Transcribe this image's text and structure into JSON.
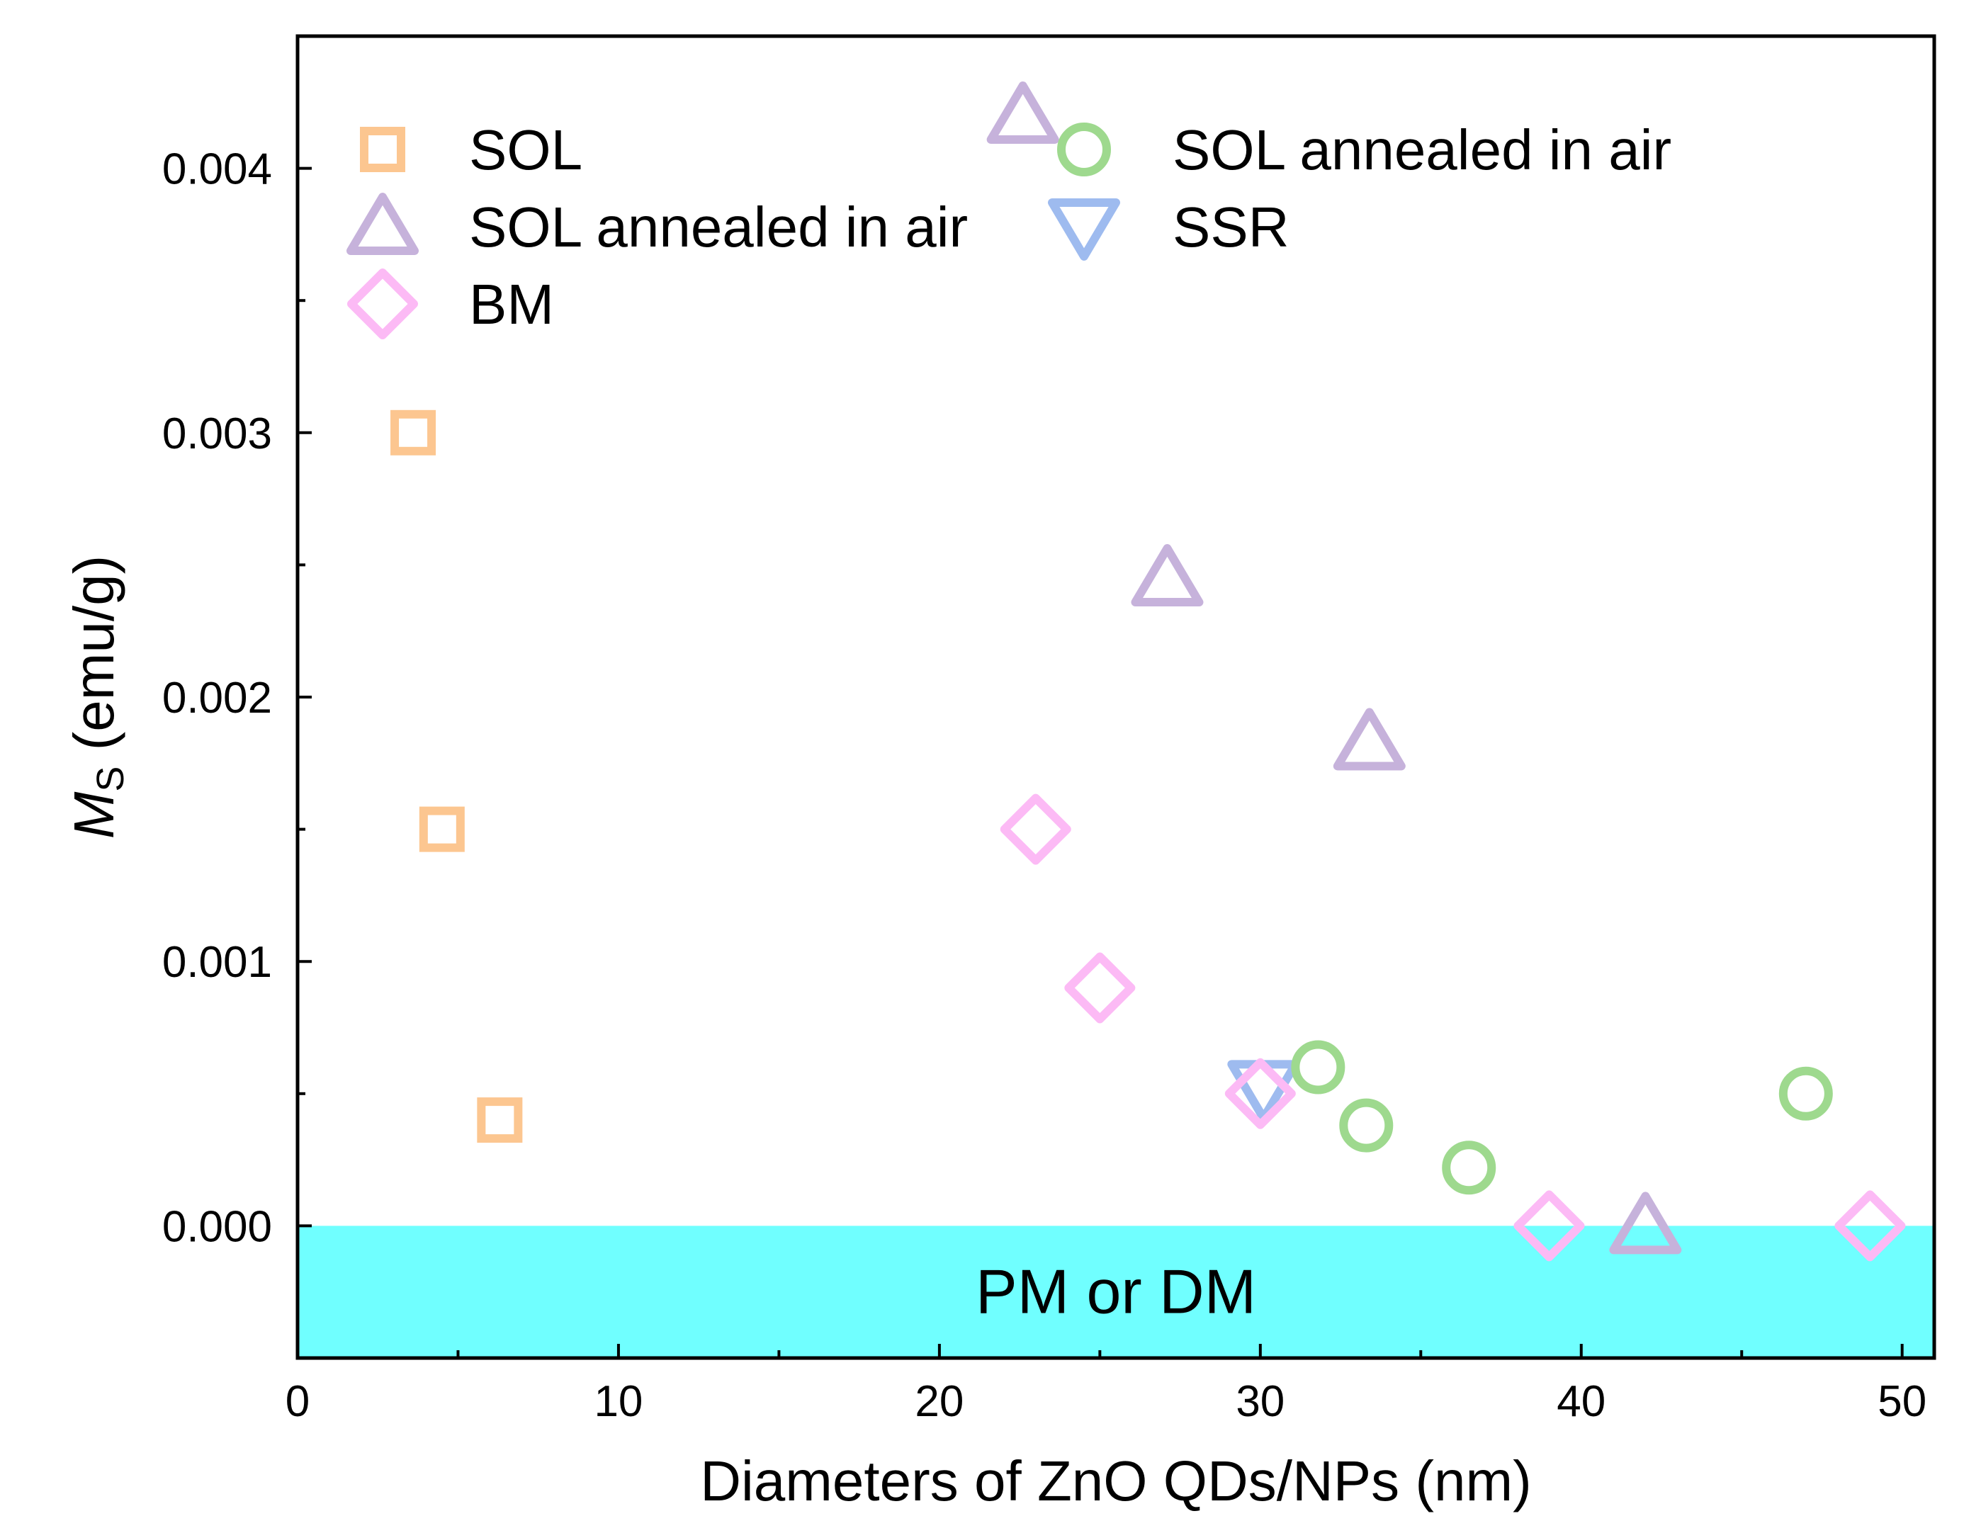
{
  "chart_data": {
    "type": "scatter",
    "title": "",
    "xlabel": "Diameters of ZnO QDs/NPs (nm)",
    "ylabel_main": "M",
    "ylabel_sub": "S",
    "ylabel_unit": " (emu/g)",
    "xlim": [
      0,
      51
    ],
    "ylim": [
      -0.0005,
      0.0045
    ],
    "x_ticks": [
      0,
      10,
      20,
      30,
      40,
      50
    ],
    "x_tick_labels": [
      "0",
      "10",
      "20",
      "30",
      "40",
      "50"
    ],
    "x_minor_ticks": [
      5,
      15,
      25,
      35,
      45
    ],
    "y_ticks": [
      0,
      0.001,
      0.002,
      0.003,
      0.004
    ],
    "y_tick_labels": [
      "0.000",
      "0.001",
      "0.002",
      "0.003",
      "0.004"
    ],
    "y_minor_ticks": [
      0.0005,
      0.0015,
      0.0025,
      0.0035
    ],
    "region": {
      "label": "PM or DM",
      "y_from": -0.0005,
      "y_to": 0.0,
      "color": "#70FFFF"
    },
    "series": [
      {
        "name": "SOL",
        "marker": "square",
        "color": "#FCC690",
        "points": [
          [
            3.6,
            0.003
          ],
          [
            4.5,
            0.0015
          ],
          [
            6.3,
            0.0004
          ]
        ]
      },
      {
        "name": "SOL annealed in air",
        "marker": "triangle-up",
        "color": "#C6B2DB",
        "points": [
          [
            22.6,
            0.0042
          ],
          [
            27.1,
            0.00245
          ],
          [
            33.4,
            0.00183
          ],
          [
            42.0,
            0.0
          ]
        ]
      },
      {
        "name": "BM",
        "marker": "diamond",
        "color": "#FCBAF5",
        "points": [
          [
            23.0,
            0.0015
          ],
          [
            25.0,
            0.0009
          ],
          [
            30.0,
            0.0005
          ],
          [
            39.0,
            0.0
          ],
          [
            49.0,
            0.0
          ]
        ]
      },
      {
        "name": "SOL annealed in air",
        "marker": "circle",
        "color": "#9ED98E",
        "points": [
          [
            31.8,
            0.0006
          ],
          [
            33.3,
            0.00038
          ],
          [
            36.5,
            0.00022
          ],
          [
            47.0,
            0.0005
          ]
        ]
      },
      {
        "name": "SSR",
        "marker": "triangle-down",
        "color": "#9EBBEF",
        "points": [
          [
            30.1,
            0.00052
          ]
        ]
      }
    ],
    "legend": {
      "columns": 2,
      "placement": "top-left"
    }
  }
}
